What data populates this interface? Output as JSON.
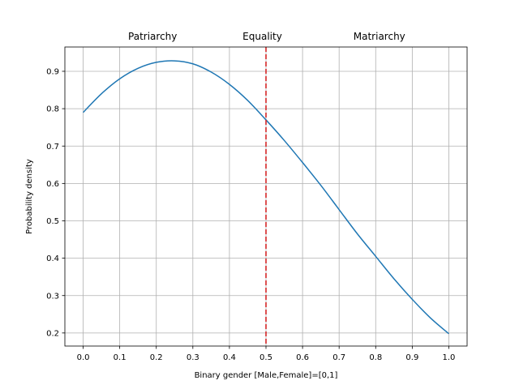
{
  "chart_data": {
    "type": "line",
    "title": "",
    "xlabel": "Binary gender [Male,Female]=[0,1]",
    "ylabel": "Probability density",
    "xlim": [
      -0.05,
      1.05
    ],
    "ylim": [
      0.165,
      0.965
    ],
    "xticks": [
      0.0,
      0.1,
      0.2,
      0.3,
      0.4,
      0.5,
      0.6,
      0.7,
      0.8,
      0.9,
      1.0
    ],
    "xtick_labels": [
      "0.0",
      "0.1",
      "0.2",
      "0.3",
      "0.4",
      "0.5",
      "0.6",
      "0.7",
      "0.8",
      "0.9",
      "1.0"
    ],
    "yticks": [
      0.2,
      0.3,
      0.4,
      0.5,
      0.6,
      0.7,
      0.8,
      0.9
    ],
    "ytick_labels": [
      "0.2",
      "0.3",
      "0.4",
      "0.5",
      "0.6",
      "0.7",
      "0.8",
      "0.9"
    ],
    "grid": true,
    "series": [
      {
        "color": "#1f77b4",
        "x": [
          0.0,
          0.05,
          0.1,
          0.15,
          0.2,
          0.25,
          0.3,
          0.35,
          0.4,
          0.45,
          0.5,
          0.55,
          0.6,
          0.65,
          0.7,
          0.75,
          0.8,
          0.85,
          0.9,
          0.95,
          1.0
        ],
        "y": [
          0.79,
          0.84,
          0.88,
          0.908,
          0.924,
          0.928,
          0.92,
          0.898,
          0.865,
          0.822,
          0.77,
          0.715,
          0.656,
          0.595,
          0.53,
          0.465,
          0.405,
          0.345,
          0.29,
          0.24,
          0.198
        ]
      }
    ],
    "vline": {
      "x": 0.5,
      "color": "#d62728",
      "style": "dashed"
    },
    "annotations": [
      {
        "text": "Patriarchy",
        "x": 0.19
      },
      {
        "text": "Equality",
        "x": 0.49
      },
      {
        "text": "Matriarchy",
        "x": 0.81
      }
    ]
  }
}
